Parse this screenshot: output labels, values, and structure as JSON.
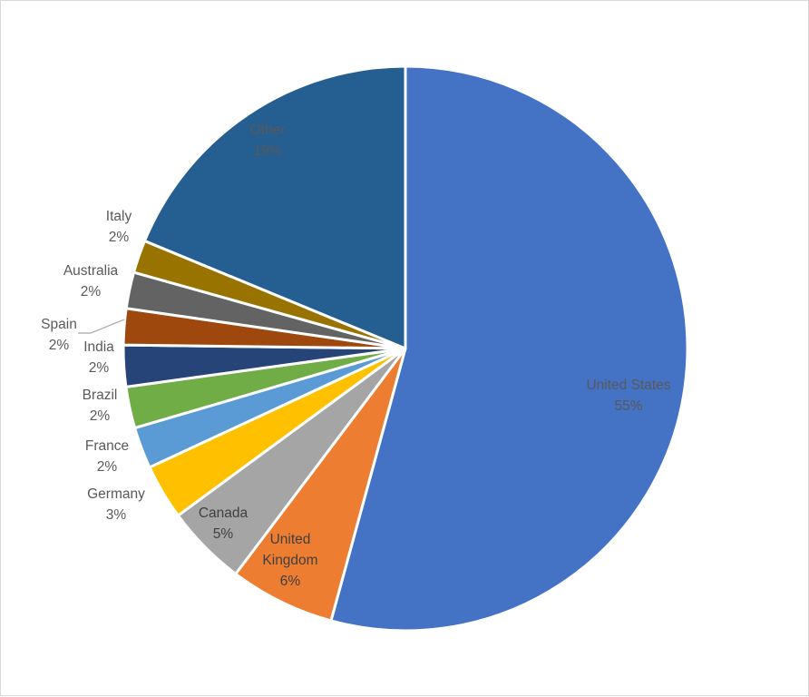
{
  "chart_data": {
    "type": "pie",
    "title": "",
    "start_angle_deg": 0,
    "direction": "clockwise",
    "label_format": "category and percentage",
    "slices": [
      {
        "label": "United States",
        "label_lines": [
          "United States"
        ],
        "percent_label": "55%",
        "value": 54.9,
        "color": "#4472C4",
        "label_color": "#595959"
      },
      {
        "label": "United Kingdom",
        "label_lines": [
          "United",
          "Kingdom"
        ],
        "percent_label": "6%",
        "value": 6.1,
        "color": "#ED7D31",
        "label_color": "#404040"
      },
      {
        "label": "Canada",
        "label_lines": [
          "Canada"
        ],
        "percent_label": "5%",
        "value": 4.7,
        "color": "#A5A5A5",
        "label_color": "#404040"
      },
      {
        "label": "Germany",
        "label_lines": [
          "Germany"
        ],
        "percent_label": "3%",
        "value": 3.2,
        "color": "#FFC000",
        "label_color": "#595959"
      },
      {
        "label": "France",
        "label_lines": [
          "France"
        ],
        "percent_label": "2%",
        "value": 2.4,
        "color": "#5B9BD5",
        "label_color": "#595959"
      },
      {
        "label": "Brazil",
        "label_lines": [
          "Brazil"
        ],
        "percent_label": "2%",
        "value": 2.4,
        "color": "#70AD47",
        "label_color": "#595959"
      },
      {
        "label": "India",
        "label_lines": [
          "India"
        ],
        "percent_label": "2%",
        "value": 2.4,
        "color": "#264478",
        "label_color": "#595959"
      },
      {
        "label": "Spain",
        "label_lines": [
          "Spain"
        ],
        "percent_label": "2%",
        "value": 2.1,
        "color": "#9E480E",
        "label_color": "#595959"
      },
      {
        "label": "Australia",
        "label_lines": [
          "Australia"
        ],
        "percent_label": "2%",
        "value": 2.1,
        "color": "#636363",
        "label_color": "#595959"
      },
      {
        "label": "Italy",
        "label_lines": [
          "Italy"
        ],
        "percent_label": "2%",
        "value": 1.9,
        "color": "#997300",
        "label_color": "#595959"
      },
      {
        "label": "Other",
        "label_lines": [
          "Other"
        ],
        "percent_label": "19%",
        "value": 19.0,
        "color": "#255E91",
        "label_color": "#595959"
      }
    ]
  }
}
